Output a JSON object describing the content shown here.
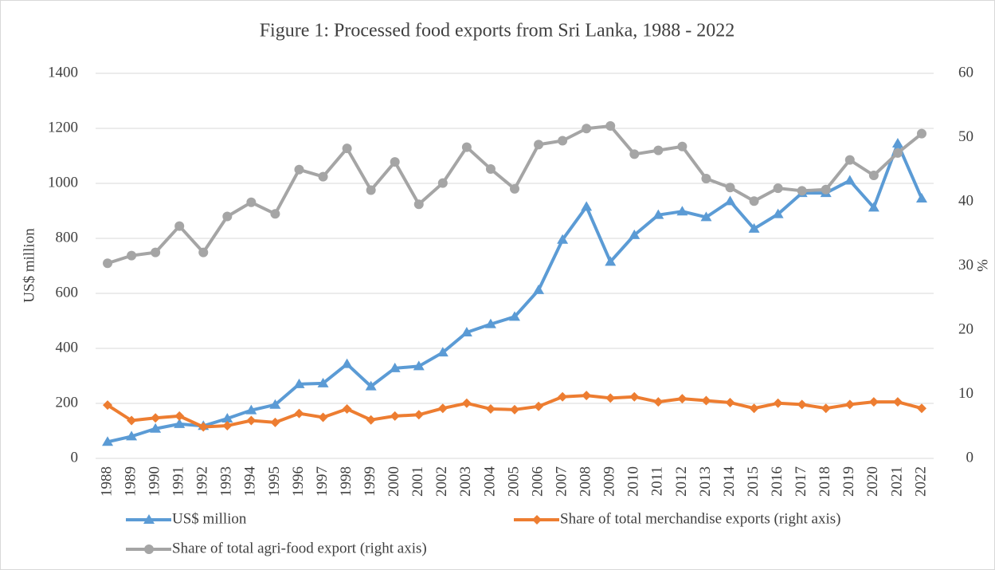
{
  "chart_data": {
    "type": "line",
    "title": "Figure 1:  Processed food exports from Sri Lanka, 1988 - 2022",
    "y_label": "US$ million",
    "y2_label": "%",
    "categories": [
      "1988",
      "1989",
      "1990",
      "1991",
      "1992",
      "1993",
      "1994",
      "1995",
      "1996",
      "1997",
      "1998",
      "1999",
      "2000",
      "2001",
      "2002",
      "2003",
      "2004",
      "2005",
      "2006",
      "2007",
      "2008",
      "2009",
      "2010",
      "2011",
      "2012",
      "2013",
      "2014",
      "2015",
      "2016",
      "2017",
      "2018",
      "2019",
      "2020",
      "2021",
      "2022"
    ],
    "series": [
      {
        "name": "US$ million",
        "color": "#5b9bd5",
        "marker": "triangle",
        "axis": "y",
        "values": [
          60,
          80,
          108,
          125,
          118,
          145,
          175,
          195,
          270,
          273,
          343,
          262,
          328,
          335,
          385,
          458,
          488,
          515,
          612,
          795,
          915,
          715,
          812,
          885,
          898,
          877,
          935,
          835,
          888,
          965,
          965,
          1010,
          912,
          1145,
          945
        ]
      },
      {
        "name": "Share of total merchandise exports (right axis)",
        "color": "#ed7d31",
        "marker": "diamond",
        "axis": "y2",
        "values": [
          8.3,
          5.9,
          6.3,
          6.6,
          4.9,
          5.1,
          5.9,
          5.6,
          7.0,
          6.4,
          7.7,
          6.0,
          6.6,
          6.8,
          7.8,
          8.6,
          7.7,
          7.6,
          8.1,
          9.6,
          9.8,
          9.4,
          9.6,
          8.8,
          9.3,
          9.0,
          8.7,
          7.8,
          8.6,
          8.4,
          7.8,
          8.4,
          8.8,
          8.8,
          7.8
        ]
      },
      {
        "name": "Share of total agri-food export  (right axis)",
        "color": "#a5a5a5",
        "marker": "circle",
        "axis": "y2",
        "values": [
          30.4,
          31.6,
          32.1,
          36.2,
          32.1,
          37.7,
          39.9,
          38.1,
          45.0,
          43.9,
          48.3,
          41.8,
          46.2,
          39.6,
          42.9,
          48.5,
          45.1,
          42.0,
          48.9,
          49.5,
          51.4,
          51.8,
          47.4,
          48.0,
          48.6,
          43.6,
          42.2,
          40.1,
          42.1,
          41.7,
          41.9,
          46.5,
          44.1,
          47.6,
          50.6
        ]
      }
    ],
    "ylim": [
      0,
      1400
    ],
    "yticks": [
      0,
      200,
      400,
      600,
      800,
      1000,
      1200,
      1400
    ],
    "y2lim": [
      0,
      60
    ],
    "y2ticks": [
      0,
      10,
      20,
      30,
      40,
      50,
      60
    ],
    "grid": true
  }
}
